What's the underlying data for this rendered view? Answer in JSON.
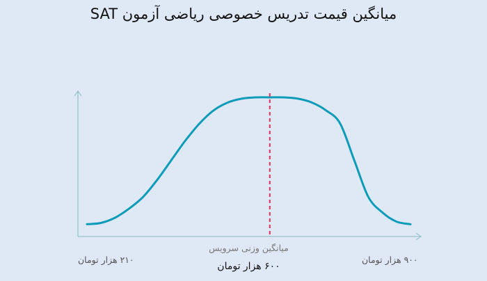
{
  "chart_data": {
    "type": "line",
    "title": "میانگین قیمت تدریس خصوصی ریاضی آزمون SAT",
    "series": [
      {
        "x": [
          210,
          240,
          270,
          300,
          330,
          360,
          390,
          420,
          450,
          480,
          510,
          540,
          570,
          600,
          630,
          660,
          690,
          720,
          750,
          780,
          810,
          840,
          870,
          900
        ],
        "y": [
          0.03,
          0.04,
          0.08,
          0.15,
          0.24,
          0.37,
          0.52,
          0.67,
          0.8,
          0.9,
          0.96,
          0.99,
          1.0,
          1.0,
          1.0,
          0.99,
          0.96,
          0.9,
          0.8,
          0.52,
          0.24,
          0.12,
          0.05,
          0.03
        ]
      }
    ],
    "xlim": [
      150,
      950
    ],
    "ylim": [
      0,
      1.15
    ],
    "reference_line": {
      "x": 600,
      "label": "میانگین وزنی سرویس",
      "value_label": "۶۰۰ هزار تومان",
      "color": "#e8305a",
      "style": "dashed"
    },
    "x_min_label": "۲۱۰ هزار تومان",
    "x_max_label": "۹۰۰ هزار تومان",
    "curve_color": "#0e9bb8",
    "axis_color": "#9ac3cc"
  }
}
